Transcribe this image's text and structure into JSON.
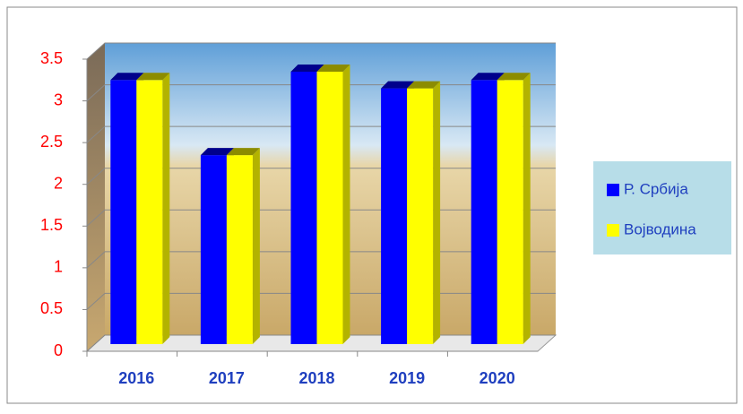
{
  "chart_data": {
    "type": "bar3d",
    "categories": [
      "2016",
      "2017",
      "2018",
      "2019",
      "2020"
    ],
    "series": [
      {
        "name": "Р. Србија",
        "color": "#0000ff",
        "values": [
          3.25,
          2.35,
          3.35,
          3.15,
          3.25
        ]
      },
      {
        "name": "Војводина",
        "color": "#ffff00",
        "values": [
          3.25,
          2.35,
          3.35,
          3.15,
          3.25
        ]
      }
    ],
    "ylim": [
      0,
      3.5
    ],
    "yticks": [
      0,
      0.5,
      1,
      1.5,
      2,
      2.5,
      3,
      3.5
    ],
    "grid": true,
    "legend": "right"
  }
}
